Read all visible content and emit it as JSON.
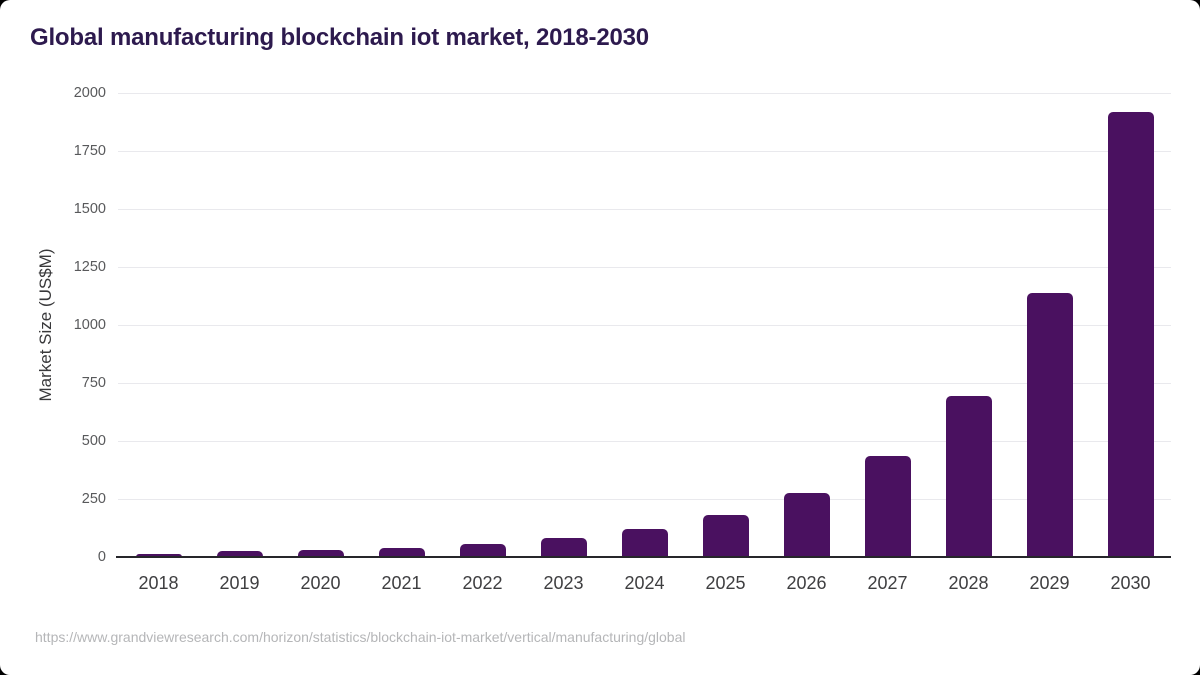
{
  "window": {
    "background": "#000000",
    "page_background": "#ffffff"
  },
  "header": {
    "title": "Global manufacturing blockchain iot market, 2018-2030"
  },
  "footer": {
    "source_url": "https://www.grandviewresearch.com/horizon/statistics/blockchain-iot-market/vertical/manufacturing/global"
  },
  "colors": {
    "bar": "#4a1160",
    "title_text": "#2d1a4e",
    "tick_text": "#58595b",
    "x_label_text": "#3e3e40",
    "axis_title_text": "#38383a",
    "gridline": "#e9e9ed",
    "baseline": "#26262a",
    "source_text": "#b5b6b8"
  },
  "chart_data": {
    "type": "bar",
    "title": "Global manufacturing blockchain iot market, 2018-2030",
    "categories": [
      "2018",
      "2019",
      "2020",
      "2021",
      "2022",
      "2023",
      "2024",
      "2025",
      "2026",
      "2027",
      "2028",
      "2029",
      "2030"
    ],
    "values": [
      15,
      27,
      31,
      40,
      58,
      83,
      120,
      180,
      275,
      435,
      695,
      1140,
      1920
    ],
    "xlabel": "",
    "ylabel": "Market Size (US$M)",
    "ylim": [
      0,
      2000
    ],
    "yticks": [
      0,
      250,
      500,
      750,
      1000,
      1250,
      1500,
      1750,
      2000
    ],
    "grid": true,
    "legend_position": "none",
    "bar_color": "#4a1160"
  }
}
